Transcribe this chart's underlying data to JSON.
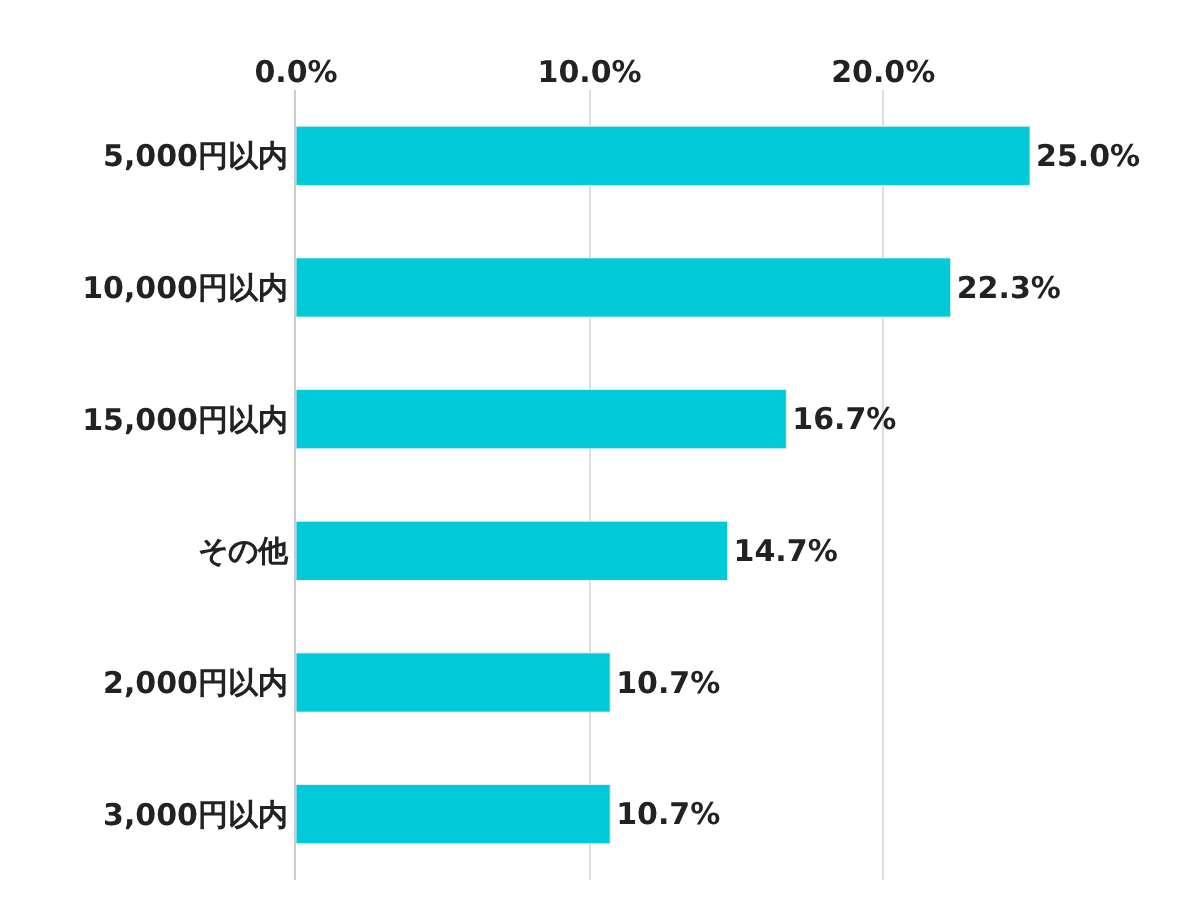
{
  "chart_data": {
    "type": "bar",
    "orientation": "horizontal",
    "categories": [
      "5,000円以内",
      "10,000円以内",
      "15,000円以内",
      "その他",
      "2,000円以内",
      "3,000円以内"
    ],
    "values": [
      25.0,
      22.3,
      16.7,
      14.7,
      10.7,
      10.7
    ],
    "value_labels": [
      "25.0%",
      "22.3%",
      "16.7%",
      "14.7%",
      "10.7%",
      "10.7%"
    ],
    "color": "#00c9d8",
    "xlim": [
      0,
      25
    ],
    "xticks": [
      {
        "value": 0,
        "label": "0.0%"
      },
      {
        "value": 10,
        "label": "10.0%"
      },
      {
        "value": 20,
        "label": "20.0%"
      }
    ],
    "grid": "x"
  }
}
